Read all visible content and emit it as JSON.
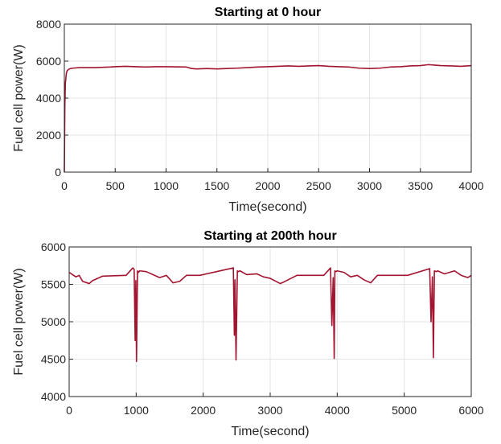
{
  "chart_data": [
    {
      "type": "line",
      "title": "Starting at 0 hour",
      "xlabel": "Time(second)",
      "ylabel": "Fuel cell power(W)",
      "xlim": [
        0,
        4000
      ],
      "ylim": [
        0,
        8000
      ],
      "xticks": [
        0,
        500,
        1000,
        1500,
        2000,
        2500,
        3000,
        3500,
        4000
      ],
      "yticks": [
        0,
        2000,
        4000,
        6000,
        8000
      ],
      "grid": true,
      "line_color": "#a2142f",
      "series": [
        {
          "x": [
            0,
            5,
            10,
            20,
            30,
            50,
            80,
            150,
            300,
            450,
            500,
            600,
            700,
            800,
            900,
            1000,
            1200,
            1250,
            1300,
            1400,
            1500,
            1600,
            1700,
            1800,
            1900,
            2000,
            2100,
            2200,
            2300,
            2400,
            2500,
            2600,
            2700,
            2800,
            2900,
            3000,
            3100,
            3200,
            3300,
            3400,
            3500,
            3580,
            3650,
            3700,
            3800,
            3900,
            4000
          ],
          "y": [
            0,
            3500,
            4800,
            5350,
            5500,
            5580,
            5620,
            5650,
            5650,
            5680,
            5700,
            5720,
            5700,
            5680,
            5700,
            5700,
            5680,
            5600,
            5580,
            5600,
            5580,
            5600,
            5620,
            5650,
            5680,
            5700,
            5720,
            5740,
            5720,
            5740,
            5760,
            5720,
            5700,
            5680,
            5620,
            5600,
            5620,
            5680,
            5700,
            5740,
            5760,
            5810,
            5780,
            5760,
            5740,
            5720,
            5760
          ]
        }
      ]
    },
    {
      "type": "line",
      "title": "Starting at 200th hour",
      "xlabel": "Time(second)",
      "ylabel": "Fuel cell power(W)",
      "xlim": [
        0,
        6000
      ],
      "ylim": [
        4000,
        6000
      ],
      "xticks": [
        0,
        1000,
        2000,
        3000,
        4000,
        5000,
        6000
      ],
      "yticks": [
        4000,
        4500,
        5000,
        5500,
        6000
      ],
      "grid": true,
      "line_color": "#a2142f",
      "series": [
        {
          "x": [
            0,
            50,
            100,
            150,
            200,
            300,
            350,
            500,
            850,
            950,
            970,
            985,
            995,
            1005,
            1020,
            1035,
            1050,
            1150,
            1350,
            1450,
            1550,
            1650,
            1750,
            1950,
            2450,
            2465,
            2475,
            2490,
            2510,
            2525,
            2550,
            2650,
            2800,
            2900,
            3000,
            3150,
            3200,
            3400,
            3800,
            3900,
            3920,
            3940,
            3955,
            3965,
            3980,
            4000,
            4100,
            4200,
            4300,
            4400,
            4500,
            4600,
            5050,
            5380,
            5400,
            5420,
            5435,
            5450,
            5480,
            5500,
            5600,
            5750,
            5850,
            5950,
            6000
          ],
          "y": [
            5660,
            5630,
            5600,
            5620,
            5540,
            5510,
            5550,
            5610,
            5620,
            5720,
            5700,
            4750,
            5550,
            4470,
            5680,
            5660,
            5680,
            5670,
            5590,
            5620,
            5520,
            5540,
            5620,
            5620,
            5720,
            4820,
            5560,
            4490,
            5680,
            5670,
            5680,
            5630,
            5640,
            5600,
            5580,
            5510,
            5530,
            5620,
            5620,
            5720,
            4950,
            5590,
            4510,
            5680,
            5670,
            5680,
            5660,
            5600,
            5620,
            5560,
            5520,
            5620,
            5620,
            5710,
            5000,
            5600,
            4520,
            5680,
            5670,
            5680,
            5640,
            5680,
            5620,
            5590,
            5620
          ]
        }
      ]
    }
  ]
}
